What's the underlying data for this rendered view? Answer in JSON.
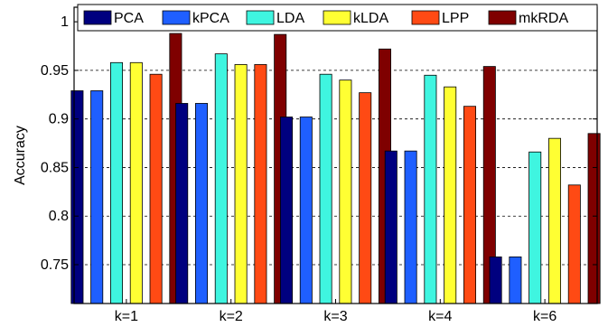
{
  "chart_data": {
    "type": "bar",
    "title": "",
    "xlabel": "",
    "ylabel": "Accuracy",
    "ylim": [
      0.71,
      1.015
    ],
    "yticks": [
      0.75,
      0.8,
      0.85,
      0.9,
      0.95,
      1
    ],
    "ytick_labels": [
      "0.75",
      "0.8",
      "0.85",
      "0.9",
      "0.95",
      "1"
    ],
    "grid": "horizontal dashed",
    "legend_position": "top",
    "categories": [
      "k=1",
      "k=2",
      "k=3",
      "k=4",
      "k=6"
    ],
    "series": [
      {
        "name": "PCA",
        "color": "#00007f",
        "values": [
          0.929,
          0.916,
          0.902,
          0.867,
          0.758
        ]
      },
      {
        "name": "kPCA",
        "color": "#1f5fff",
        "values": [
          0.929,
          0.916,
          0.902,
          0.867,
          0.758
        ]
      },
      {
        "name": "LDA",
        "color": "#3ff5e0",
        "values": [
          0.958,
          0.967,
          0.946,
          0.945,
          0.866
        ]
      },
      {
        "name": "kLDA",
        "color": "#ffff33",
        "values": [
          0.958,
          0.956,
          0.94,
          0.933,
          0.88
        ]
      },
      {
        "name": "LPP",
        "color": "#ff4a14",
        "values": [
          0.946,
          0.956,
          0.927,
          0.913,
          0.832
        ]
      },
      {
        "name": "mkRDA",
        "color": "#7f0000",
        "values": [
          0.988,
          0.987,
          0.972,
          0.954,
          0.885
        ]
      }
    ]
  }
}
